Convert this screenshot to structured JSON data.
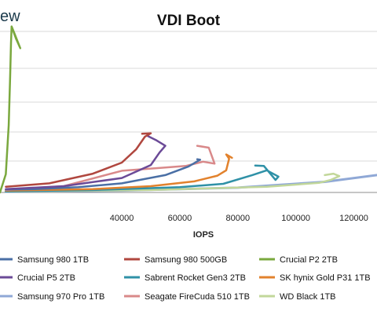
{
  "brand_fragment": "ew",
  "chart_data": {
    "type": "line",
    "title": "VDI Boot",
    "xlabel": "IOPS",
    "ylabel": "",
    "xlim": [
      -2000,
      128000
    ],
    "ylim": [
      0,
      4
    ],
    "x_ticks": [
      40000,
      60000,
      80000,
      100000,
      120000
    ],
    "x_tick_labels": [
      "40000",
      "60000",
      "80000",
      "100000",
      "120000"
    ],
    "grid": "horizontal",
    "legend_position": "bottom",
    "series": [
      {
        "name": "Samsung 980 1TB",
        "color": "#4a6fa5",
        "x": [
          0,
          10000,
          25000,
          40000,
          55000,
          63000,
          67000,
          66000
        ],
        "y": [
          0.06,
          0.07,
          0.11,
          0.19,
          0.36,
          0.54,
          0.68,
          0.69
        ]
      },
      {
        "name": "Samsung 980 500GB",
        "color": "#b0473f",
        "x": [
          0,
          15000,
          30000,
          40000,
          45000,
          48000,
          50000,
          47000
        ],
        "y": [
          0.12,
          0.19,
          0.39,
          0.62,
          0.9,
          1.16,
          1.23,
          1.22
        ]
      },
      {
        "name": "Crucial P2 2TB",
        "color": "#7aa83e",
        "x": [
          -2000,
          0,
          1000,
          1500,
          1800,
          2000,
          3000,
          5000,
          3500,
          2000
        ],
        "y": [
          0.0,
          0.38,
          1.4,
          2.4,
          3.1,
          3.45,
          3.3,
          3.0,
          3.2,
          3.45
        ]
      },
      {
        "name": "Crucial P5 2TB",
        "color": "#6b4a97",
        "x": [
          0,
          20000,
          40000,
          50000,
          53000,
          55000,
          52000,
          49000
        ],
        "y": [
          0.07,
          0.13,
          0.3,
          0.57,
          0.83,
          0.97,
          1.08,
          1.17
        ]
      },
      {
        "name": "Sabrent Rocket Gen3 2TB",
        "color": "#2f91a7",
        "x": [
          0,
          30000,
          60000,
          75000,
          85000,
          90000,
          94000,
          93000,
          89000,
          86000
        ],
        "y": [
          0.02,
          0.05,
          0.11,
          0.18,
          0.36,
          0.46,
          0.33,
          0.26,
          0.55,
          0.56
        ]
      },
      {
        "name": "SK hynix Gold P31 1TB",
        "color": "#e2822d",
        "x": [
          0,
          30000,
          50000,
          65000,
          73000,
          76000,
          77000,
          76000,
          78000
        ],
        "y": [
          0.04,
          0.07,
          0.13,
          0.23,
          0.35,
          0.46,
          0.7,
          0.79,
          0.72
        ]
      },
      {
        "name": "Samsung 970 Pro 1TB",
        "color": "#8fa8d6",
        "x": [
          0,
          40000,
          80000,
          110000,
          128000
        ],
        "y": [
          0.02,
          0.04,
          0.1,
          0.22,
          0.36
        ]
      },
      {
        "name": "Seagate FireCuda 510 1TB",
        "color": "#d9898a",
        "x": [
          0,
          20000,
          40000,
          55000,
          62000,
          68000,
          72000,
          70000,
          66000
        ],
        "y": [
          0.05,
          0.13,
          0.45,
          0.52,
          0.55,
          0.64,
          0.6,
          0.93,
          0.97
        ]
      },
      {
        "name": "WD Black 1TB",
        "color": "#c2d79a",
        "x": [
          0,
          50000,
          90000,
          108000,
          112000,
          115000,
          113000,
          110000
        ],
        "y": [
          0.02,
          0.05,
          0.12,
          0.2,
          0.26,
          0.34,
          0.39,
          0.36
        ]
      }
    ]
  }
}
